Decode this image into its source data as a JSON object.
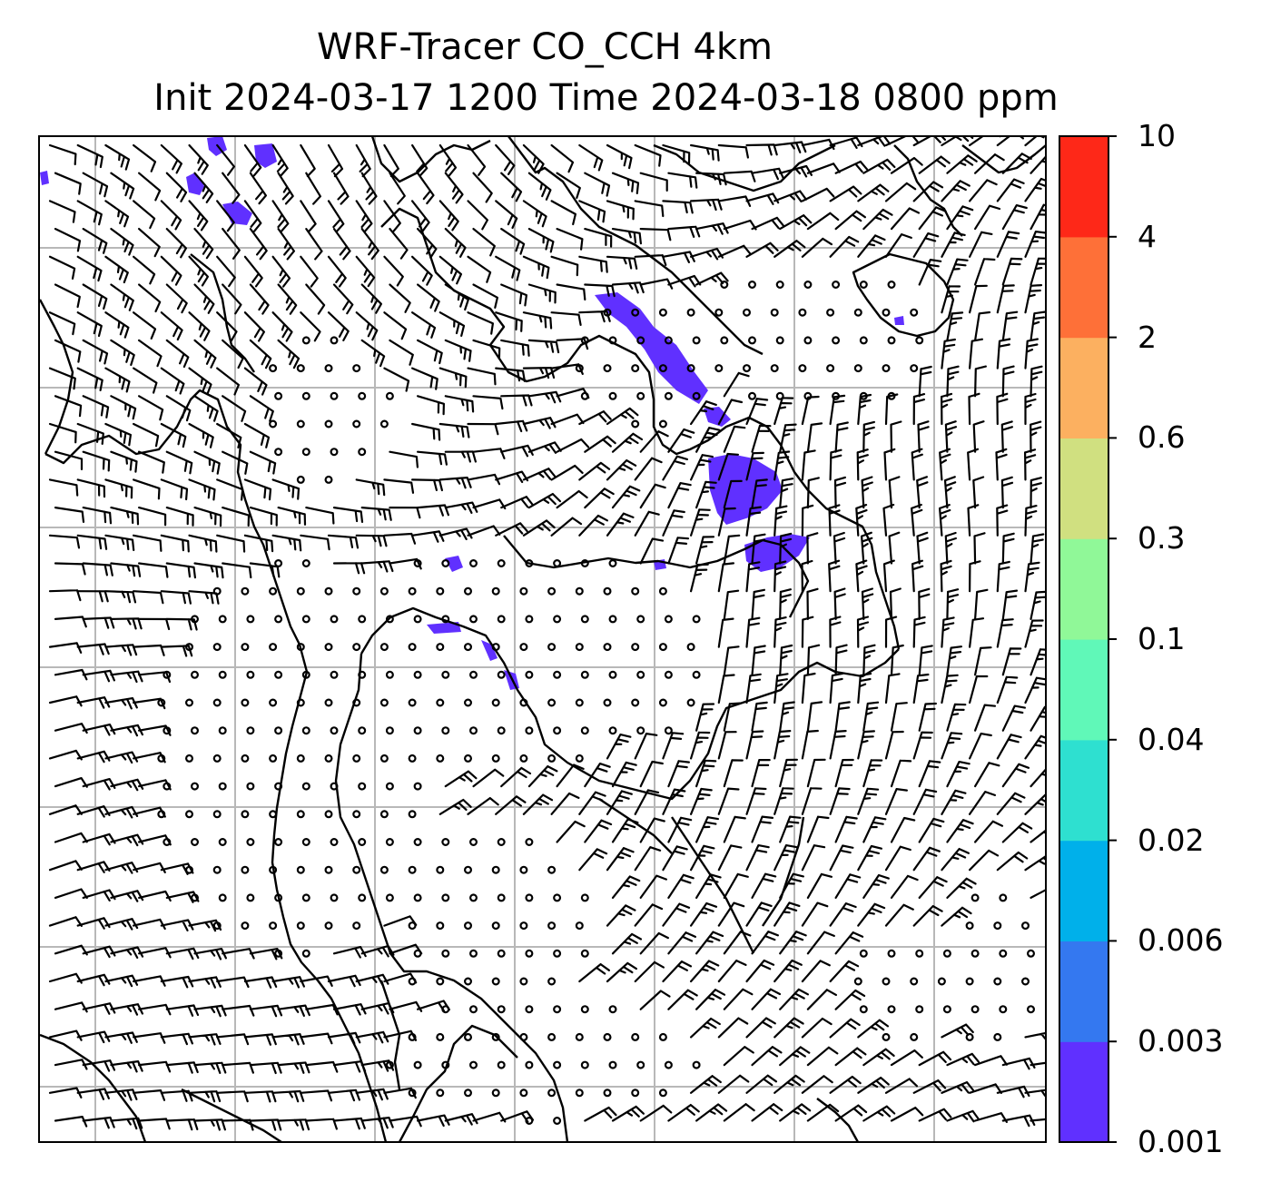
{
  "title": {
    "line1": "WRF-Tracer CO_CCH 4km",
    "line2": "Init 2024-03-17 1200 Time 2024-03-18 0800 ppm"
  },
  "colorbar": {
    "labels": [
      "0.001",
      "0.003",
      "0.006",
      "0.02",
      "0.04",
      "0.1",
      "0.3",
      "0.6",
      "2",
      "4",
      "10"
    ],
    "colors": [
      "#6030ff",
      "#3478f0",
      "#00b0ea",
      "#2ee0d0",
      "#60f8b8",
      "#90f898",
      "#d0e080",
      "#fcb060",
      "#fe7038",
      "#fe2818"
    ]
  },
  "map": {
    "tracer_color": "#6030ff",
    "gridline_color": "#b8b8b8",
    "frame_color": "#000000"
  }
}
